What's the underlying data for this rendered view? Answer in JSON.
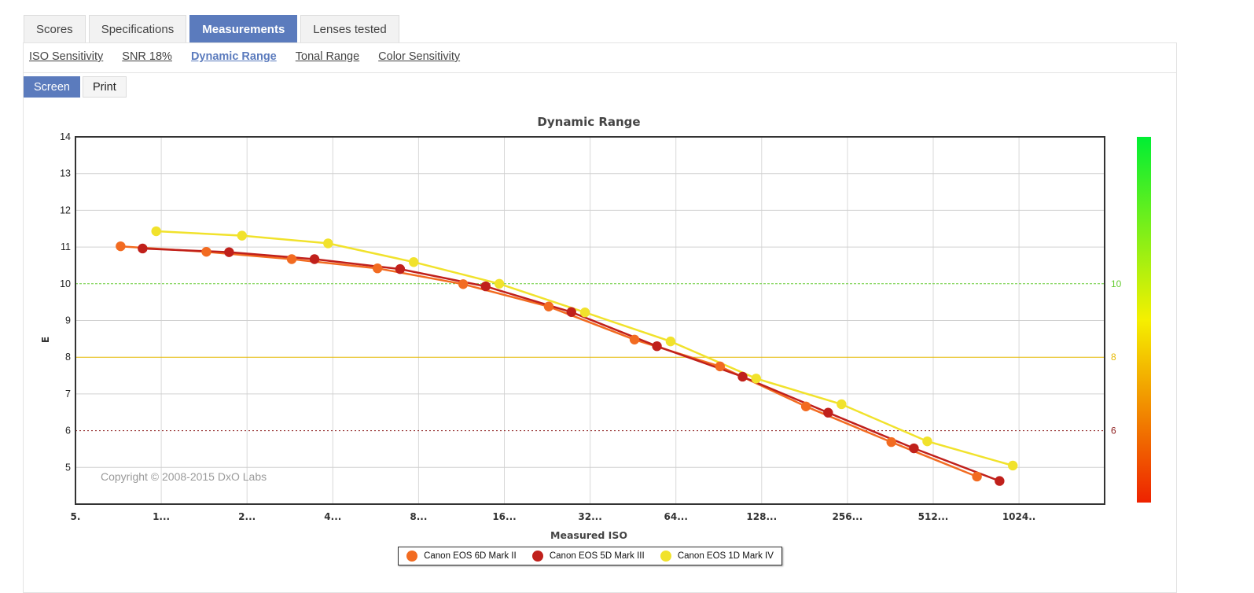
{
  "tabs": [
    "Scores",
    "Specifications",
    "Measurements",
    "Lenses tested"
  ],
  "active_tab": "Measurements",
  "subnav": [
    "ISO Sensitivity",
    "SNR 18%",
    "Dynamic Range",
    "Tonal Range",
    "Color Sensitivity"
  ],
  "active_subnav": "Dynamic Range",
  "modes": [
    "Screen",
    "Print"
  ],
  "active_mode": "Screen",
  "chart_data": {
    "type": "line",
    "title": "Dynamic Range",
    "xlabel": "Measured ISO",
    "ylabel": "E",
    "x_scale": "log2",
    "x_ticks": [
      "5.",
      "1...",
      "2...",
      "4...",
      "8...",
      "16...",
      "32...",
      "64...",
      "128...",
      "256...",
      "512...",
      "1024.."
    ],
    "y_ticks": [
      5,
      6,
      7,
      8,
      9,
      10,
      11,
      12,
      13,
      14
    ],
    "ylim": [
      4,
      14
    ],
    "grid": true,
    "legend_position": "bottom",
    "reference_lines": [
      {
        "y": 10,
        "label": "10",
        "color": "#66cc33"
      },
      {
        "y": 8,
        "label": "8",
        "color": "#e6b800"
      },
      {
        "y": 6,
        "label": "6",
        "color": "#8b1a1a"
      }
    ],
    "color_scale": {
      "top": "#00ee33",
      "middle": "#f5f000",
      "bottom": "#ee2200"
    },
    "annotation": "Copyright © 2008-2015 DxO Labs",
    "series": [
      {
        "name": "Canon EOS 6D Mark II",
        "color": "#f26b21",
        "points": [
          [
            72,
            11.02
          ],
          [
            144,
            10.87
          ],
          [
            287,
            10.67
          ],
          [
            574,
            10.42
          ],
          [
            1147,
            9.99
          ],
          [
            2290,
            9.38
          ],
          [
            4580,
            8.48
          ],
          [
            9140,
            7.75
          ],
          [
            18300,
            6.66
          ],
          [
            36500,
            5.69
          ],
          [
            72900,
            4.75
          ]
        ]
      },
      {
        "name": "Canon EOS 5D Mark III",
        "color": "#c0201b",
        "points": [
          [
            86,
            10.96
          ],
          [
            173,
            10.86
          ],
          [
            345,
            10.67
          ],
          [
            689,
            10.4
          ],
          [
            1376,
            9.93
          ],
          [
            2750,
            9.23
          ],
          [
            5490,
            8.3
          ],
          [
            10970,
            7.47
          ],
          [
            21900,
            6.49
          ],
          [
            43800,
            5.52
          ],
          [
            87500,
            4.63
          ]
        ]
      },
      {
        "name": "Canon EOS 1D Mark IV",
        "color": "#f1e22c",
        "points": [
          [
            96,
            11.43
          ],
          [
            192,
            11.31
          ],
          [
            385,
            11.1
          ],
          [
            769,
            10.59
          ],
          [
            1536,
            10.0
          ],
          [
            3070,
            9.22
          ],
          [
            6130,
            8.43
          ],
          [
            12240,
            7.42
          ],
          [
            24400,
            6.72
          ],
          [
            48800,
            5.71
          ],
          [
            97400,
            5.05
          ]
        ]
      }
    ]
  }
}
